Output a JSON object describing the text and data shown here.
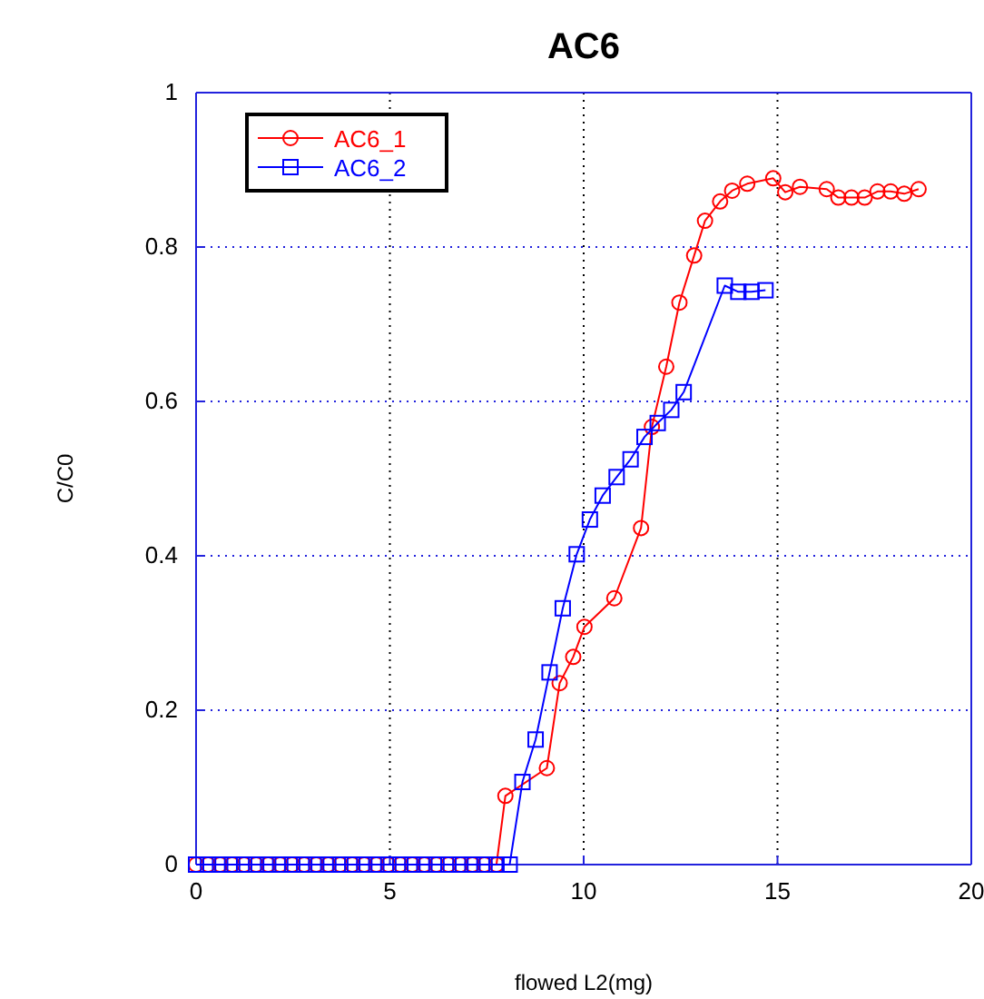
{
  "chart_data": {
    "type": "line",
    "title": "AC6",
    "xlabel": "flowed L2(mg)",
    "ylabel": "C/C0",
    "xlim": [
      0,
      20
    ],
    "xticks": [
      0,
      5,
      10,
      15,
      20
    ],
    "ylim": [
      0,
      1
    ],
    "yticks": [
      0,
      {
        "value": 0.2,
        "label": "0.2"
      },
      {
        "value": 0.4,
        "label": "0.4"
      },
      {
        "value": 0.6,
        "label": "0.6"
      },
      {
        "value": 0.8,
        "label": "0.8"
      },
      1
    ],
    "grid": true,
    "legend": "top left",
    "line_style": "solid",
    "series": [
      {
        "name": "AC6_1",
        "color": "#ff0000",
        "marker": "circle",
        "x": [
          0,
          0.31,
          0.62,
          0.93,
          1.24,
          1.55,
          1.86,
          2.17,
          2.48,
          2.79,
          3.1,
          3.41,
          3.72,
          4.03,
          4.34,
          4.65,
          4.96,
          5.27,
          5.58,
          5.89,
          6.2,
          6.51,
          6.82,
          7.13,
          7.44,
          7.75,
          7.98,
          9.05,
          9.38,
          9.73,
          10.02,
          10.79,
          11.48,
          11.76,
          12.13,
          12.47,
          12.85,
          13.13,
          13.52,
          13.83,
          14.22,
          14.89,
          15.2,
          15.58,
          16.27,
          16.57,
          16.91,
          17.25,
          17.58,
          17.92,
          18.27,
          18.64
        ],
        "values": [
          0,
          0,
          0,
          0,
          0,
          0,
          0,
          0,
          0,
          0,
          0,
          0,
          0,
          0,
          0,
          0,
          0,
          0,
          0,
          0,
          0,
          0,
          0,
          0,
          0,
          0,
          0.089,
          0.125,
          0.235,
          0.269,
          0.308,
          0.345,
          0.436,
          0.567,
          0.645,
          0.728,
          0.789,
          0.834,
          0.859,
          0.873,
          0.882,
          0.889,
          0.871,
          0.878,
          0.875,
          0.864,
          0.864,
          0.864,
          0.872,
          0.872,
          0.869,
          0.875
        ]
      },
      {
        "name": "AC6_2",
        "color": "#0000ff",
        "marker": "square",
        "x": [
          0,
          0.31,
          0.62,
          0.93,
          1.24,
          1.55,
          1.86,
          2.17,
          2.48,
          2.79,
          3.1,
          3.41,
          3.72,
          4.03,
          4.34,
          4.65,
          4.96,
          5.27,
          5.58,
          5.89,
          6.2,
          6.51,
          6.82,
          7.13,
          7.44,
          7.75,
          8.09,
          8.42,
          8.76,
          9.12,
          9.46,
          9.82,
          10.16,
          10.49,
          10.85,
          11.21,
          11.57,
          11.91,
          12.26,
          12.58,
          13.64,
          13.99,
          14.33,
          14.69
        ],
        "values": [
          0,
          0,
          0,
          0,
          0,
          0,
          0,
          0,
          0,
          0,
          0,
          0,
          0,
          0,
          0,
          0,
          0,
          0,
          0,
          0,
          0,
          0,
          0,
          0,
          0,
          0,
          0,
          0.107,
          0.162,
          0.249,
          0.332,
          0.402,
          0.447,
          0.478,
          0.502,
          0.525,
          0.554,
          0.572,
          0.589,
          0.612,
          0.75,
          0.742,
          0.742,
          0.744
        ]
      }
    ]
  }
}
